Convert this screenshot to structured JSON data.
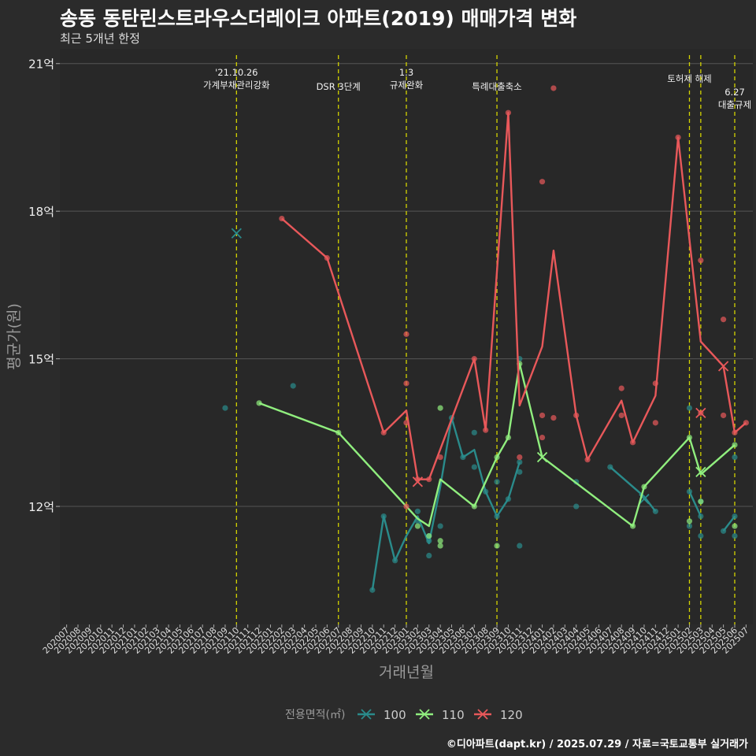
{
  "title": "송동 동탄린스트라우스더레이크 아파트(2019) 매매가격 변화",
  "subtitle": "최근 5개년 한정",
  "caption": "©디아파트(dapt.kr) / 2025.07.29 / 자료=국토교통부 실거래가",
  "chart_data": {
    "type": "line",
    "xlabel": "거래년월",
    "ylabel": "평균가(원)",
    "ylim": [
      9.6,
      21.3
    ],
    "yticks": [
      {
        "value": 12,
        "label": "12억"
      },
      {
        "value": 15,
        "label": "15억"
      },
      {
        "value": 18,
        "label": "18억"
      },
      {
        "value": 21,
        "label": "21억"
      }
    ],
    "categories": [
      "202007",
      "202008",
      "202009",
      "202010",
      "202011",
      "202012",
      "202101",
      "202102",
      "202103",
      "202104",
      "202105",
      "202106",
      "202107",
      "202108",
      "202109",
      "202110",
      "202111",
      "202112",
      "202201",
      "202202",
      "202203",
      "202204",
      "202205",
      "202206",
      "202207",
      "202208",
      "202209",
      "202210",
      "202211",
      "202212",
      "202301",
      "202302",
      "202303",
      "202304",
      "202305",
      "202306",
      "202307",
      "202308",
      "202309",
      "202310",
      "202311",
      "202312",
      "202401",
      "202402",
      "202403",
      "202404",
      "202405",
      "202406",
      "202407",
      "202408",
      "202409",
      "202410",
      "202411",
      "202412",
      "202501",
      "202502",
      "202503",
      "202504",
      "202505",
      "202506",
      "202507"
    ],
    "legend": {
      "title": "전용면적(㎡)",
      "position": "bottom"
    },
    "series": [
      {
        "name": "100",
        "color": "#2a8b8b",
        "line": [
          [
            "202210",
            10.3
          ],
          [
            "202211",
            11.8
          ],
          [
            "202212",
            10.9
          ],
          [
            "202301",
            11.4
          ],
          [
            "202302",
            11.8
          ],
          [
            "202303",
            11.25
          ],
          [
            "202304",
            12.4
          ],
          [
            "202305",
            13.8
          ],
          [
            "202306",
            13.0
          ],
          [
            "202307",
            13.15
          ],
          [
            "202308",
            12.3
          ],
          [
            "202309",
            11.8
          ],
          [
            "202310",
            12.15
          ],
          [
            "202311",
            12.9
          ],
          null,
          [
            "202407",
            12.8
          ],
          [
            "202408",
            12.6
          ],
          [
            "202409",
            12.4
          ],
          [
            "202410",
            12.2
          ],
          [
            "202411",
            11.9
          ],
          null,
          [
            "202502",
            12.3
          ],
          [
            "202503",
            11.8
          ],
          null,
          [
            "202505",
            11.5
          ],
          [
            "202506",
            11.8
          ]
        ],
        "points": [
          [
            "202109",
            14.0
          ],
          [
            "202203",
            14.45
          ],
          [
            "202210",
            10.3
          ],
          [
            "202211",
            11.8
          ],
          [
            "202212",
            10.9
          ],
          [
            "202302",
            11.9
          ],
          [
            "202302",
            11.7
          ],
          [
            "202303",
            11.4
          ],
          [
            "202303",
            11.0
          ],
          [
            "202303",
            11.3
          ],
          [
            "202304",
            11.6
          ],
          [
            "202305",
            13.8
          ],
          [
            "202306",
            13.0
          ],
          [
            "202307",
            13.5
          ],
          [
            "202307",
            12.8
          ],
          [
            "202308",
            12.3
          ],
          [
            "202309",
            12.5
          ],
          [
            "202309",
            11.8
          ],
          [
            "202310",
            12.15
          ],
          [
            "202311",
            12.9
          ],
          [
            "202311",
            12.7
          ],
          [
            "202311",
            11.2
          ],
          [
            "202311",
            15.0
          ],
          [
            "202404",
            12.5
          ],
          [
            "202404",
            12.0
          ],
          [
            "202407",
            12.8
          ],
          [
            "202411",
            11.9
          ],
          [
            "202502",
            12.3
          ],
          [
            "202502",
            11.6
          ],
          [
            "202502",
            14.0
          ],
          [
            "202503",
            11.8
          ],
          [
            "202503",
            12.1
          ],
          [
            "202503",
            11.4
          ],
          [
            "202505",
            11.5
          ],
          [
            "202506",
            11.8
          ],
          [
            "202506",
            11.4
          ],
          [
            "202506",
            13.0
          ]
        ],
        "x_marks": [
          [
            "202110",
            17.55
          ],
          [
            "202410",
            12.15
          ]
        ]
      },
      {
        "name": "110",
        "color": "#90ee7e",
        "line": [
          [
            "202112",
            14.1
          ],
          [
            "202207",
            13.5
          ],
          [
            "202302",
            11.75
          ],
          [
            "202303",
            11.6
          ],
          [
            "202304",
            12.55
          ],
          [
            "202307",
            12.0
          ],
          [
            "202309",
            13.0
          ],
          [
            "202310",
            13.4
          ],
          [
            "202311",
            14.9
          ],
          [
            "202401",
            13.0
          ],
          [
            "202409",
            11.6
          ],
          [
            "202410",
            12.4
          ],
          [
            "202502",
            13.4
          ],
          [
            "202503",
            12.65
          ],
          [
            "202506",
            13.25
          ]
        ],
        "points": [
          [
            "202112",
            14.1
          ],
          [
            "202207",
            13.5
          ],
          [
            "202302",
            11.6
          ],
          [
            "202303",
            11.4
          ],
          [
            "202304",
            14.0
          ],
          [
            "202304",
            11.3
          ],
          [
            "202304",
            11.2
          ],
          [
            "202307",
            12.0
          ],
          [
            "202309",
            13.0
          ],
          [
            "202309",
            11.2
          ],
          [
            "202310",
            13.4
          ],
          [
            "202311",
            14.9
          ],
          [
            "202409",
            11.6
          ],
          [
            "202410",
            12.4
          ],
          [
            "202502",
            13.4
          ],
          [
            "202502",
            11.7
          ],
          [
            "202503",
            12.1
          ],
          [
            "202506",
            13.25
          ],
          [
            "202506",
            11.6
          ]
        ],
        "x_marks": [
          [
            "202401",
            13.0
          ],
          [
            "202503",
            12.7
          ]
        ]
      },
      {
        "name": "120",
        "color": "#e8585a",
        "line": [
          [
            "202202",
            17.85
          ],
          [
            "202206",
            17.05
          ],
          [
            "202211",
            13.5
          ],
          [
            "202301",
            13.95
          ],
          [
            "202302",
            12.55
          ],
          [
            "202303",
            12.55
          ],
          [
            "202307",
            15.0
          ],
          [
            "202308",
            13.55
          ],
          [
            "202310",
            20.0
          ],
          [
            "202311",
            14.05
          ],
          [
            "202401",
            15.25
          ],
          [
            "202402",
            17.2
          ],
          [
            "202404",
            13.85
          ],
          [
            "202405",
            12.95
          ],
          [
            "202408",
            14.15
          ],
          [
            "202409",
            13.3
          ],
          [
            "202411",
            14.25
          ],
          [
            "202501",
            19.5
          ],
          [
            "202503",
            15.35
          ],
          [
            "202505",
            14.85
          ],
          [
            "202506",
            13.5
          ],
          [
            "202507",
            13.7
          ]
        ],
        "points": [
          [
            "202202",
            17.85
          ],
          [
            "202206",
            17.05
          ],
          [
            "202211",
            13.5
          ],
          [
            "202301",
            15.5
          ],
          [
            "202301",
            14.5
          ],
          [
            "202301",
            13.7
          ],
          [
            "202301",
            12.0
          ],
          [
            "202302",
            12.55
          ],
          [
            "202303",
            12.55
          ],
          [
            "202304",
            13.0
          ],
          [
            "202307",
            15.0
          ],
          [
            "202308",
            13.55
          ],
          [
            "202310",
            20.0
          ],
          [
            "202311",
            13.0
          ],
          [
            "202401",
            18.6
          ],
          [
            "202401",
            13.85
          ],
          [
            "202401",
            13.4
          ],
          [
            "202402",
            20.5
          ],
          [
            "202402",
            13.8
          ],
          [
            "202404",
            13.85
          ],
          [
            "202405",
            12.95
          ],
          [
            "202408",
            14.4
          ],
          [
            "202408",
            13.85
          ],
          [
            "202409",
            13.3
          ],
          [
            "202411",
            14.5
          ],
          [
            "202411",
            13.7
          ],
          [
            "202501",
            19.5
          ],
          [
            "202503",
            17.0
          ],
          [
            "202503",
            13.9
          ],
          [
            "202505",
            15.8
          ],
          [
            "202505",
            13.85
          ],
          [
            "202506",
            13.5
          ],
          [
            "202507",
            13.7
          ]
        ],
        "x_marks": [
          [
            "202302",
            12.5
          ],
          [
            "202503",
            13.9
          ],
          [
            "202505",
            14.85
          ]
        ]
      }
    ],
    "annotations": [
      {
        "x": "202110",
        "lines": [
          "'21.10.26",
          "가계부채관리강화"
        ],
        "level": 0
      },
      {
        "x": "202207",
        "lines": [
          "DSR 3단계"
        ],
        "level": 1
      },
      {
        "x": "202301",
        "lines": [
          "1.3",
          "규제완화"
        ],
        "level": 0
      },
      {
        "x": "202309",
        "lines": [
          "특례대출축소"
        ],
        "level": 1
      },
      {
        "x": "202502",
        "lines": [
          "토허제 해제"
        ],
        "level": 0.45
      },
      {
        "x": "202503",
        "lines": [],
        "level": 0
      },
      {
        "x": "202506",
        "lines": [
          "6.27",
          "대출규제"
        ],
        "level": 1.4
      }
    ]
  }
}
